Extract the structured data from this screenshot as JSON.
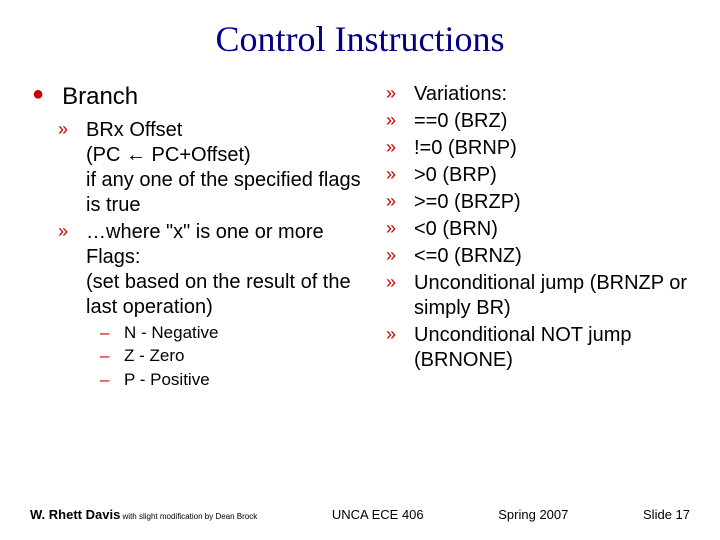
{
  "title": "Control Instructions",
  "left": {
    "heading": "Branch",
    "items": [
      "BRx Offset\n(PC ← PC+Offset)\nif any one of the specified flags is true",
      "…where \"x\" is one or more Flags:\n(set based on the result of the last operation)"
    ],
    "subitems": [
      "N - Negative",
      "Z - Zero",
      "P - Positive"
    ]
  },
  "right": {
    "items": [
      "Variations:",
      "==0  (BRZ)",
      "!=0   (BRNP)",
      ">0    (BRP)",
      ">=0 (BRZP)",
      "<0    (BRN)",
      "<=0  (BRNZ)",
      "Unconditional jump (BRNZP or simply BR)",
      "Unconditional NOT jump (BRNONE)"
    ]
  },
  "footer": {
    "author_main": "W. Rhett Davis",
    "author_sub": " with slight modification by Dean Brock",
    "course": "UNCA ECE 406",
    "term": "Spring 2007",
    "slide": "Slide 17"
  },
  "colors": {
    "title": "#000080",
    "bullet": "#cc0000",
    "text": "#000000",
    "background": "#ffffff"
  }
}
